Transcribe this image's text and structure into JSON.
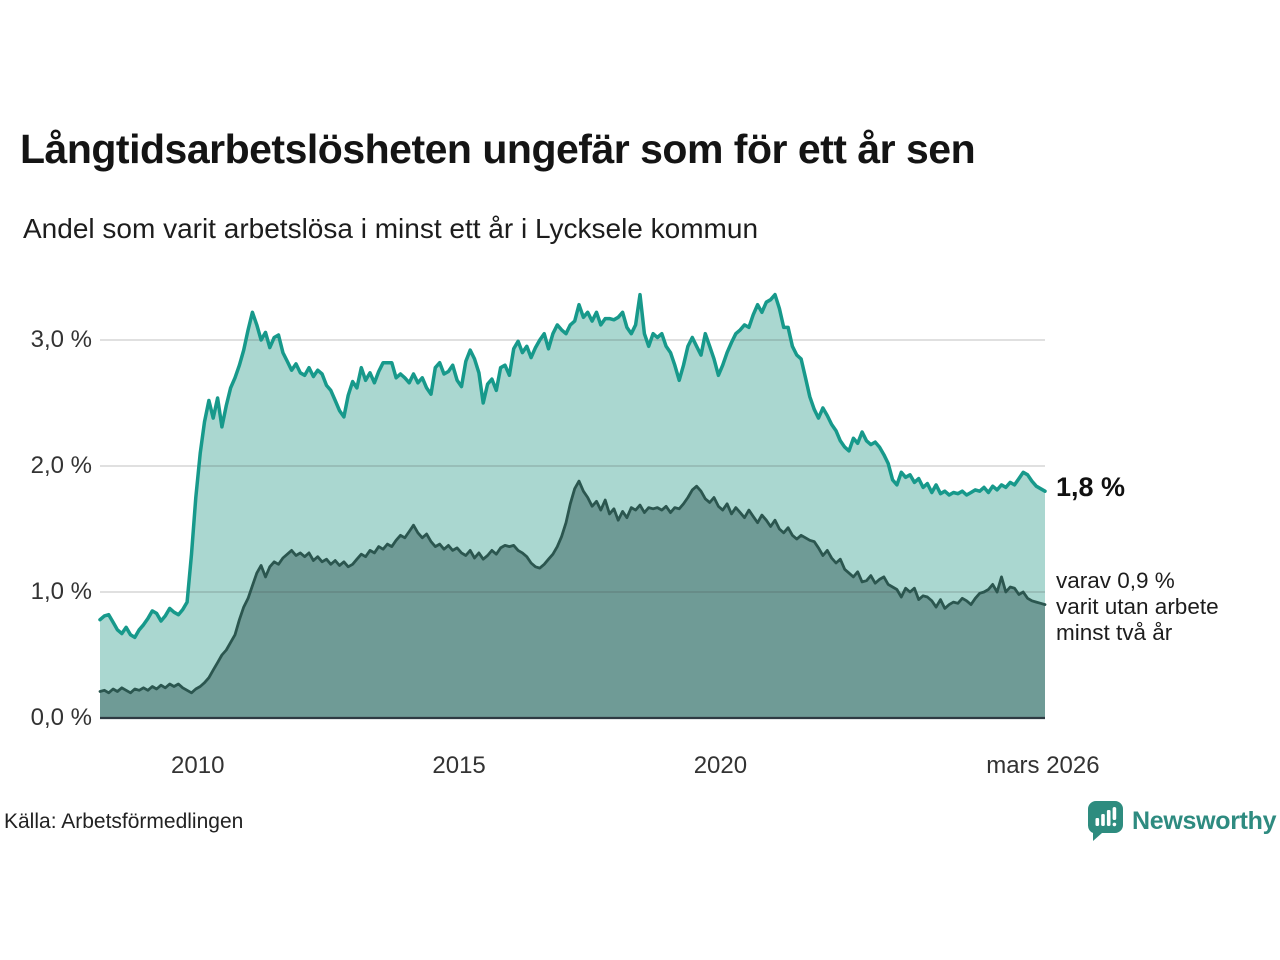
{
  "header": {
    "title": "Långtidsarbetslösheten ungefär som för ett år sen",
    "subtitle": "Andel som varit arbetslösa i minst ett år i Lycksele kommun"
  },
  "footer": {
    "source": "Källa: Arbetsförmedlingen",
    "brand": "Newsworthy",
    "brand_color": "#2e8b80"
  },
  "chart_data": {
    "type": "area",
    "title": "Långtidsarbetslösheten ungefär som för ett år sen",
    "subtitle": "Andel som varit arbetslösa i minst ett år i Lycksele kommun",
    "unit": "%",
    "x_domain": {
      "start": 2008.17,
      "end": 2026.25
    },
    "ylim": [
      0,
      3.5
    ],
    "grid": true,
    "legend_position": "none",
    "x_ticks": [
      {
        "label": "2010",
        "t": 2010.04
      },
      {
        "label": "2015",
        "t": 2015.04
      },
      {
        "label": "2020",
        "t": 2020.04
      },
      {
        "label": "mars 2026",
        "t": 2026.21
      }
    ],
    "y_ticks": [
      {
        "label": "0,0 %",
        "value": 0
      },
      {
        "label": "1,0 %",
        "value": 1
      },
      {
        "label": "2,0 %",
        "value": 2
      },
      {
        "label": "3,0 %",
        "value": 3
      }
    ],
    "annotations": {
      "value_label": "1,8 %",
      "sub_label": "varav 0,9 %\nvarit utan arbete\nminst två år"
    },
    "series": [
      {
        "name": "Andel som varit arbetslösa minst ett år",
        "line_color": "#17998b",
        "fill_color": "#aad7d0",
        "end_value": 1.8,
        "values": [
          0.78,
          0.81,
          0.82,
          0.76,
          0.7,
          0.67,
          0.72,
          0.66,
          0.64,
          0.7,
          0.74,
          0.79,
          0.85,
          0.83,
          0.77,
          0.81,
          0.87,
          0.84,
          0.82,
          0.86,
          0.92,
          1.3,
          1.75,
          2.1,
          2.35,
          2.52,
          2.38,
          2.54,
          2.31,
          2.48,
          2.62,
          2.7,
          2.8,
          2.92,
          3.08,
          3.22,
          3.12,
          3.0,
          3.06,
          2.94,
          3.02,
          3.04,
          2.9,
          2.83,
          2.76,
          2.81,
          2.74,
          2.72,
          2.78,
          2.71,
          2.76,
          2.73,
          2.64,
          2.6,
          2.52,
          2.44,
          2.39,
          2.56,
          2.67,
          2.62,
          2.78,
          2.68,
          2.74,
          2.66,
          2.75,
          2.82,
          2.82,
          2.82,
          2.7,
          2.73,
          2.7,
          2.66,
          2.73,
          2.66,
          2.7,
          2.62,
          2.57,
          2.78,
          2.82,
          2.73,
          2.75,
          2.8,
          2.68,
          2.63,
          2.83,
          2.92,
          2.85,
          2.74,
          2.5,
          2.65,
          2.69,
          2.6,
          2.78,
          2.8,
          2.72,
          2.93,
          2.99,
          2.9,
          2.95,
          2.86,
          2.94,
          3.0,
          3.05,
          2.93,
          3.05,
          3.12,
          3.08,
          3.05,
          3.12,
          3.15,
          3.28,
          3.18,
          3.22,
          3.15,
          3.22,
          3.12,
          3.17,
          3.17,
          3.16,
          3.18,
          3.22,
          3.1,
          3.05,
          3.12,
          3.36,
          3.05,
          2.95,
          3.05,
          3.02,
          3.05,
          2.95,
          2.9,
          2.8,
          2.68,
          2.8,
          2.95,
          3.02,
          2.95,
          2.88,
          3.05,
          2.95,
          2.85,
          2.72,
          2.8,
          2.9,
          2.98,
          3.05,
          3.08,
          3.12,
          3.1,
          3.2,
          3.28,
          3.22,
          3.3,
          3.32,
          3.36,
          3.25,
          3.1,
          3.1,
          2.95,
          2.88,
          2.85,
          2.7,
          2.55,
          2.45,
          2.38,
          2.46,
          2.4,
          2.33,
          2.28,
          2.2,
          2.15,
          2.12,
          2.22,
          2.18,
          2.27,
          2.2,
          2.17,
          2.19,
          2.15,
          2.09,
          2.02,
          1.89,
          1.85,
          1.95,
          1.91,
          1.93,
          1.87,
          1.9,
          1.83,
          1.86,
          1.79,
          1.85,
          1.78,
          1.8,
          1.77,
          1.79,
          1.78,
          1.8,
          1.77,
          1.79,
          1.81,
          1.8,
          1.83,
          1.79,
          1.84,
          1.81,
          1.85,
          1.83,
          1.87,
          1.85,
          1.9,
          1.95,
          1.93,
          1.88,
          1.84,
          1.82,
          1.8
        ]
      },
      {
        "name": "varav utan arbete minst två år",
        "line_color": "#2b564f",
        "fill_color": "#6f9b96",
        "end_value": 0.9,
        "values": [
          0.21,
          0.22,
          0.2,
          0.23,
          0.21,
          0.24,
          0.22,
          0.2,
          0.23,
          0.22,
          0.24,
          0.22,
          0.25,
          0.23,
          0.26,
          0.24,
          0.27,
          0.25,
          0.27,
          0.24,
          0.22,
          0.2,
          0.23,
          0.25,
          0.28,
          0.32,
          0.38,
          0.44,
          0.5,
          0.54,
          0.6,
          0.66,
          0.78,
          0.88,
          0.95,
          1.05,
          1.15,
          1.21,
          1.12,
          1.2,
          1.24,
          1.22,
          1.27,
          1.3,
          1.33,
          1.29,
          1.31,
          1.28,
          1.31,
          1.25,
          1.28,
          1.24,
          1.26,
          1.22,
          1.25,
          1.21,
          1.24,
          1.2,
          1.22,
          1.26,
          1.3,
          1.28,
          1.33,
          1.31,
          1.36,
          1.34,
          1.38,
          1.36,
          1.41,
          1.45,
          1.43,
          1.48,
          1.53,
          1.47,
          1.43,
          1.46,
          1.4,
          1.36,
          1.38,
          1.34,
          1.37,
          1.33,
          1.35,
          1.31,
          1.29,
          1.33,
          1.27,
          1.31,
          1.26,
          1.29,
          1.33,
          1.3,
          1.35,
          1.37,
          1.36,
          1.37,
          1.33,
          1.31,
          1.28,
          1.23,
          1.2,
          1.19,
          1.22,
          1.26,
          1.3,
          1.36,
          1.44,
          1.55,
          1.7,
          1.82,
          1.88,
          1.8,
          1.75,
          1.68,
          1.72,
          1.65,
          1.73,
          1.62,
          1.66,
          1.57,
          1.64,
          1.59,
          1.67,
          1.65,
          1.69,
          1.63,
          1.67,
          1.66,
          1.67,
          1.65,
          1.68,
          1.63,
          1.67,
          1.66,
          1.7,
          1.75,
          1.81,
          1.84,
          1.8,
          1.74,
          1.71,
          1.75,
          1.68,
          1.65,
          1.7,
          1.62,
          1.67,
          1.63,
          1.59,
          1.65,
          1.6,
          1.55,
          1.61,
          1.57,
          1.52,
          1.57,
          1.5,
          1.47,
          1.51,
          1.45,
          1.42,
          1.45,
          1.43,
          1.41,
          1.4,
          1.35,
          1.29,
          1.33,
          1.27,
          1.23,
          1.26,
          1.18,
          1.15,
          1.12,
          1.16,
          1.08,
          1.09,
          1.13,
          1.07,
          1.1,
          1.12,
          1.06,
          1.04,
          1.02,
          0.96,
          1.03,
          1.0,
          1.03,
          0.94,
          0.97,
          0.96,
          0.93,
          0.88,
          0.94,
          0.87,
          0.9,
          0.92,
          0.91,
          0.95,
          0.93,
          0.9,
          0.95,
          0.99,
          1.0,
          1.02,
          1.06,
          1.0,
          1.12,
          1.0,
          1.04,
          1.03,
          0.98,
          1.0,
          0.95,
          0.93,
          0.92,
          0.91,
          0.9
        ]
      }
    ]
  }
}
